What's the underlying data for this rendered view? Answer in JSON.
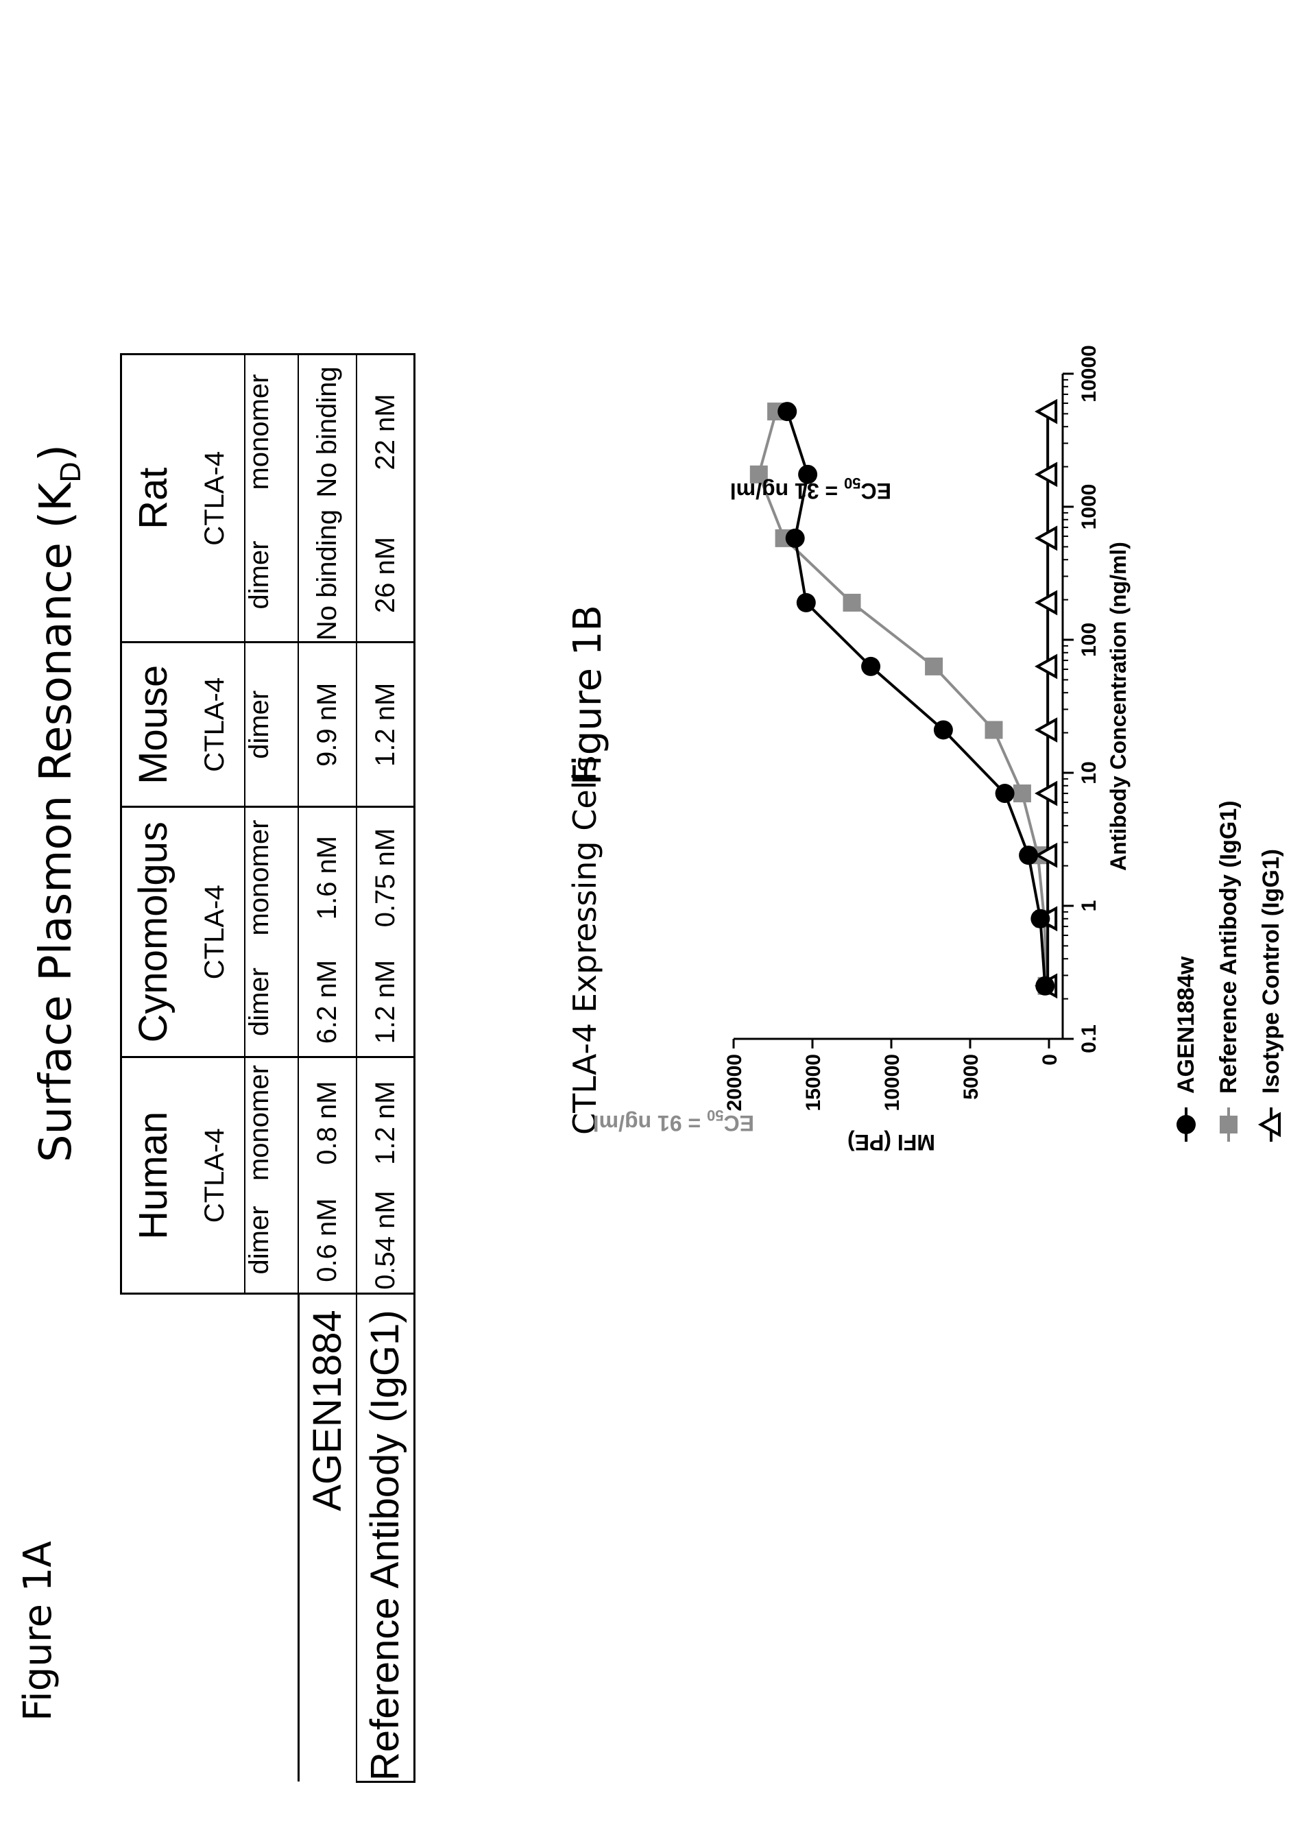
{
  "figure_1a": {
    "label": "Figure 1A",
    "title_main": "Surface Plasmon Resonance (K",
    "title_sub": "D",
    "title_close": ")",
    "table": {
      "species": [
        "Human",
        "Cynomolgus",
        "Mouse",
        "Rat"
      ],
      "targets": [
        "CTLA-4",
        "CTLA-4",
        "CTLA-4",
        "CTLA-4"
      ],
      "forms": [
        [
          "dimer",
          "monomer"
        ],
        [
          "dimer",
          "monomer"
        ],
        [
          "dimer"
        ],
        [
          "dimer",
          "monomer"
        ]
      ],
      "rows": [
        {
          "name": "AGEN1884",
          "values": [
            "0.6 nM",
            "0.8 nM",
            "6.2 nM",
            "1.6 nM",
            "9.9 nM",
            "No binding",
            "No binding"
          ]
        },
        {
          "name": "Reference Antibody (IgG1)",
          "values": [
            "0.54 nM",
            "1.2 nM",
            "1.2 nM",
            "0.75 nM",
            "1.2 nM",
            "26 nM",
            "22 nM"
          ]
        }
      ]
    }
  },
  "figure_1b": {
    "label": "Figure 1B",
    "title": "CTLA-4 Expressing Cells"
  },
  "chart_data": {
    "type": "line",
    "title": "CTLA-4 Expressing Cells",
    "xlabel": "Antibody Concentration (ng/ml)",
    "ylabel": "MFI (PE)",
    "xscale": "log",
    "xlim": [
      0.1,
      10000
    ],
    "ylim": [
      0,
      20000
    ],
    "x_ticks": [
      0.1,
      1,
      10,
      100,
      1000,
      10000
    ],
    "x_tick_labels": [
      "0.1",
      "1",
      "10",
      "100",
      "1000",
      "10000"
    ],
    "y_ticks": [
      0,
      5000,
      10000,
      15000,
      20000
    ],
    "y_tick_labels": [
      "0",
      "5000",
      "10000",
      "15000",
      "20000"
    ],
    "legend_position": "bottom",
    "series": [
      {
        "name": "AGEN1884w",
        "color": "#000000",
        "marker": "circle",
        "x": [
          0.25,
          0.8,
          2.4,
          7,
          21,
          63,
          190,
          580,
          1750,
          5200
        ],
        "y": [
          250,
          550,
          1300,
          2800,
          6700,
          11300,
          15400,
          16100,
          15300,
          16600
        ]
      },
      {
        "name": "Reference Antibody (IgG1)",
        "color": "#8c8c8c",
        "marker": "square",
        "x": [
          0.25,
          0.8,
          2.4,
          7,
          21,
          63,
          190,
          580,
          1750,
          5200
        ],
        "y": [
          150,
          300,
          700,
          1700,
          3500,
          7300,
          12500,
          16800,
          18400,
          17300
        ]
      },
      {
        "name": "Isotype Control (IgG1)",
        "color": "#000000",
        "marker": "triangle-open",
        "x": [
          0.25,
          0.8,
          2.4,
          7,
          21,
          63,
          190,
          580,
          1750,
          5200
        ],
        "y": [
          80,
          80,
          80,
          80,
          80,
          80,
          80,
          80,
          80,
          80
        ]
      }
    ],
    "annotations": [
      {
        "text_main": "EC",
        "text_sub": "50",
        "text_rest": " = 91 ng/ml",
        "color": "#8c8c8c"
      },
      {
        "text_main": "EC",
        "text_sub": "50",
        "text_rest": " = 31 ng/ml",
        "color": "#000000"
      }
    ]
  }
}
